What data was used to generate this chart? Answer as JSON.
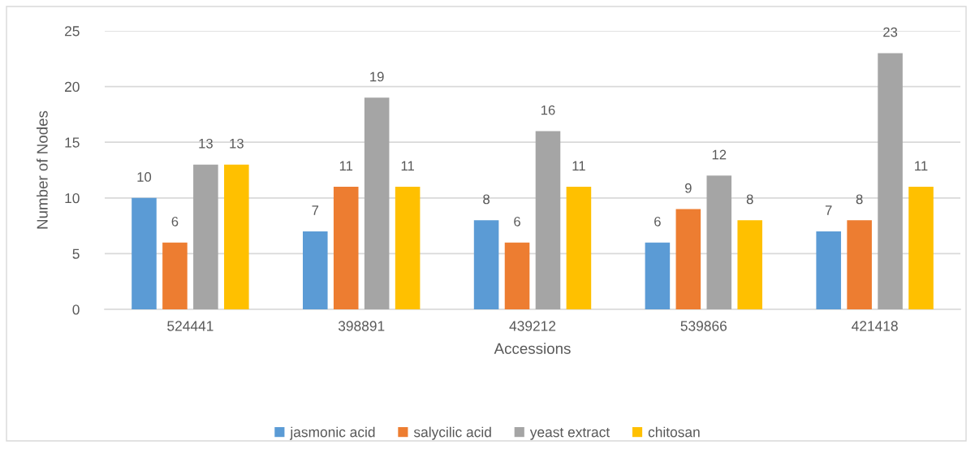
{
  "chart_data": {
    "type": "bar",
    "xlabel": "Accessions",
    "ylabel": "Number of Nodes",
    "categories": [
      "524441",
      "398891",
      "439212",
      "539866",
      "421418"
    ],
    "series": [
      {
        "name": "jasmonic acid",
        "color": "#5b9bd5",
        "values": [
          10,
          7,
          8,
          6,
          7
        ]
      },
      {
        "name": "salycilic acid",
        "color": "#ed7d31",
        "values": [
          6,
          11,
          6,
          9,
          8
        ]
      },
      {
        "name": "yeast extract",
        "color": "#a5a5a5",
        "values": [
          13,
          19,
          16,
          12,
          23
        ]
      },
      {
        "name": "chitosan",
        "color": "#ffc000",
        "values": [
          13,
          11,
          11,
          8,
          11
        ]
      }
    ],
    "ylim": [
      0,
      25
    ],
    "yticks": [
      0,
      5,
      10,
      15,
      20,
      25
    ],
    "grid": "y",
    "legend": "bottom",
    "data_labels": true
  }
}
